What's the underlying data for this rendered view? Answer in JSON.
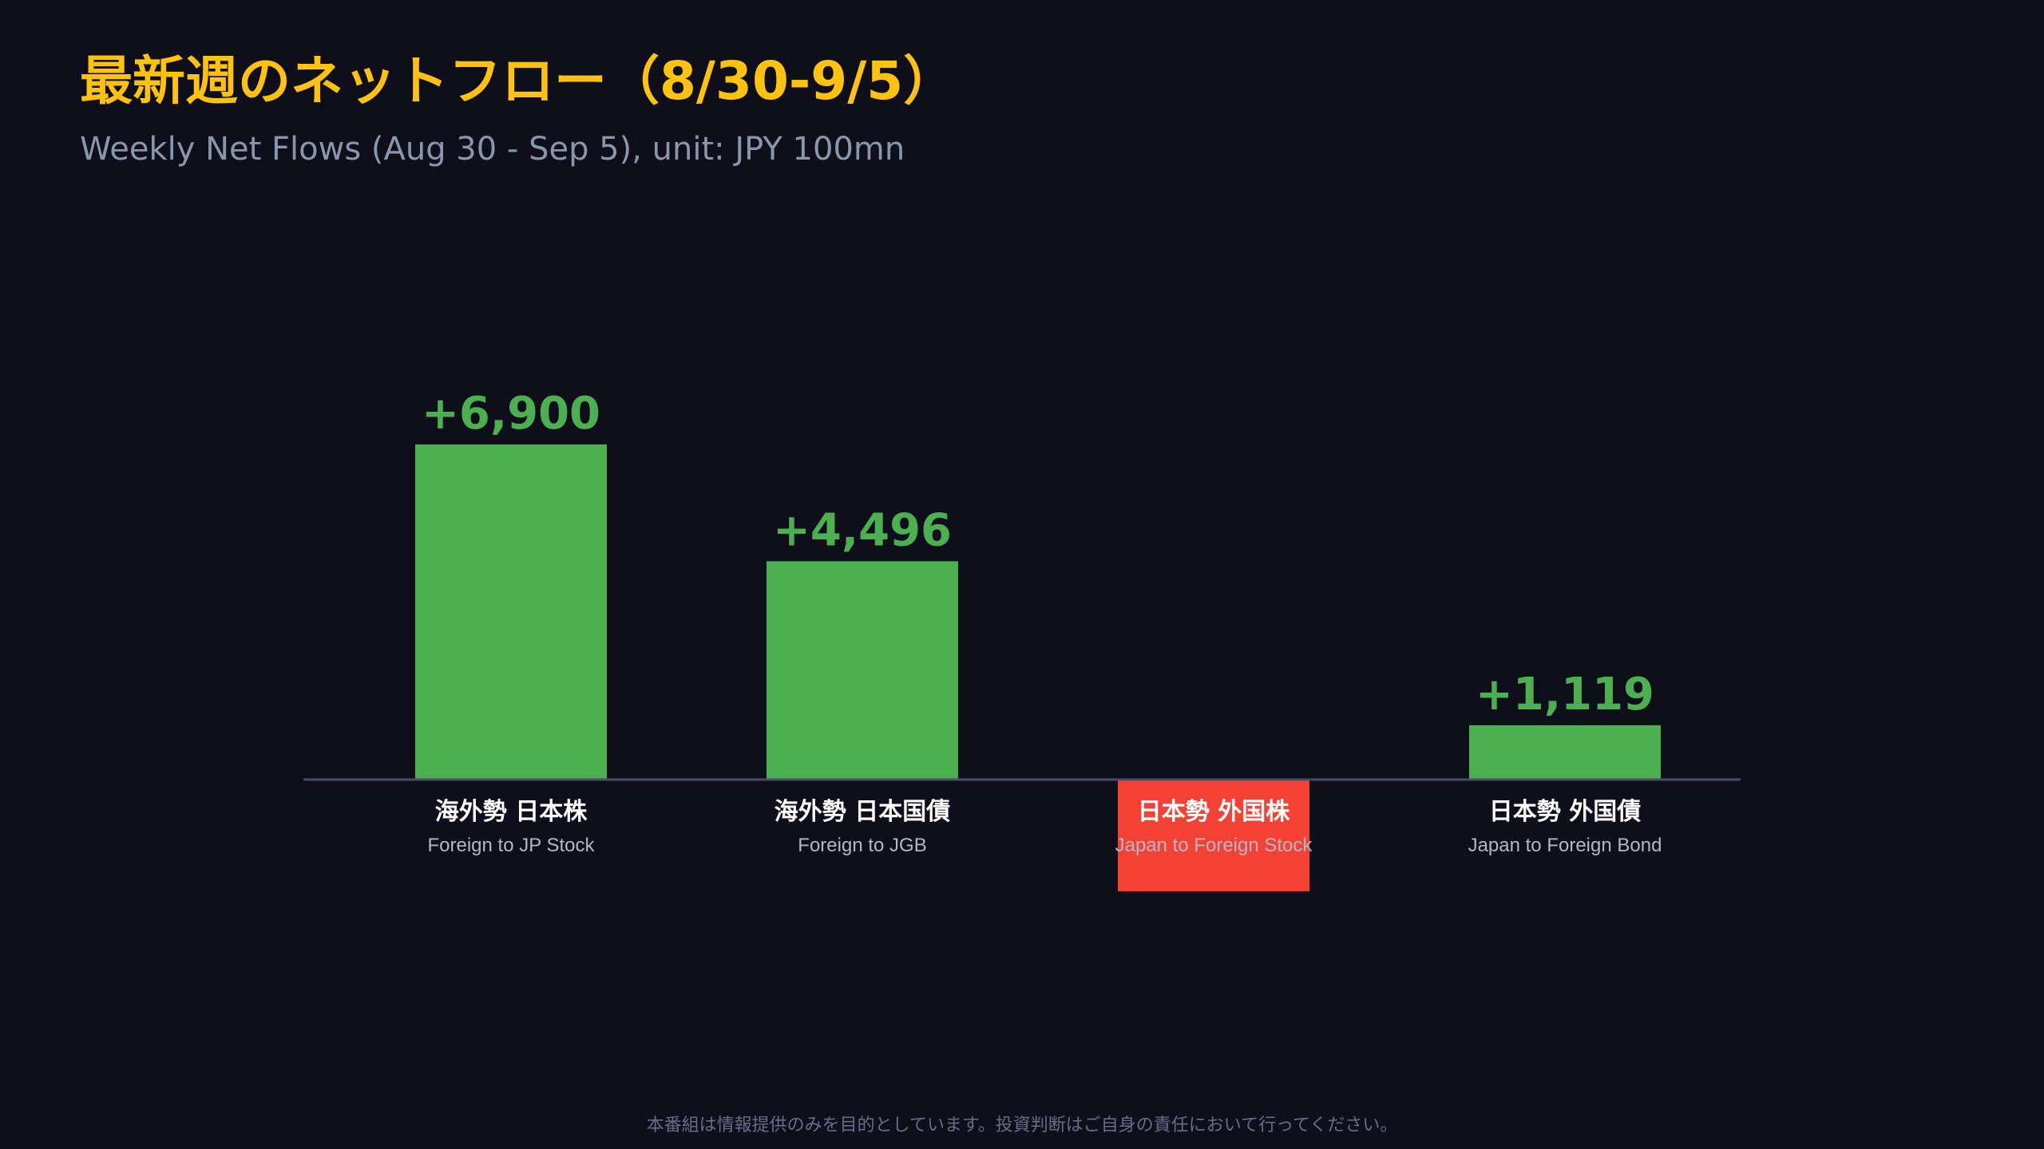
{
  "title": "最新週のネットフロー（8/30-9/5）",
  "subtitle": "Weekly Net Flows (Aug 30 - Sep 5), unit: JPY 100mn",
  "disclaimer": "本番組は情報提供のみを目的としています。投資判断はご自身の責任において行ってください。",
  "colors": {
    "background": "#0e0f1b",
    "title": "#ffc20e",
    "positive": "#4caf50",
    "negative": "#f44336",
    "axis": "#4a4d66"
  },
  "chart_data": {
    "type": "bar",
    "categories": [
      {
        "label": "海外勢 日本株",
        "sublabel": "Foreign to JP Stock"
      },
      {
        "label": "海外勢 日本国債",
        "sublabel": "Foreign to JGB"
      },
      {
        "label": "日本勢 外国株",
        "sublabel": "Japan to Foreign Stock"
      },
      {
        "label": "日本勢 外国債",
        "sublabel": "Japan to Foreign Bond"
      }
    ],
    "values": [
      6900,
      4496,
      -2300,
      1119
    ],
    "value_labels": [
      "+6,900",
      "+4,496",
      "",
      "+1,119"
    ],
    "ylim": [
      -2600,
      6900
    ],
    "grid": false,
    "legend": "none"
  }
}
